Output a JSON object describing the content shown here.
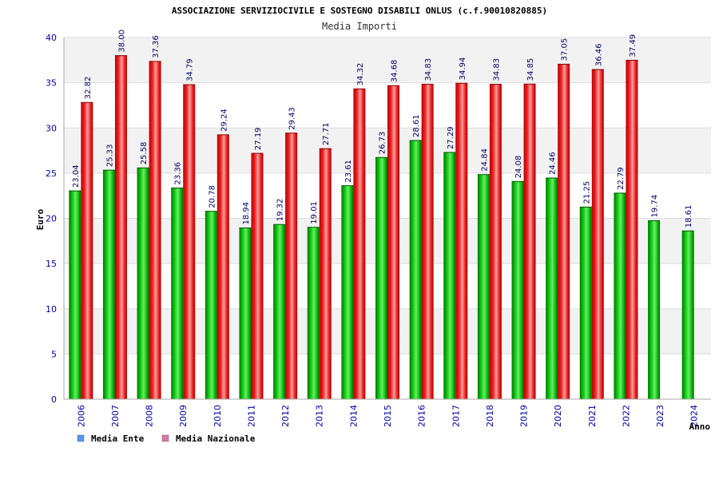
{
  "chart_data": {
    "type": "bar",
    "title": "ASSOCIAZIONE SERVIZIOCIVILE E SOSTEGNO DISABILI ONLUS (c.f.90010820885)",
    "subtitle": "Media Importi",
    "xlabel": "Anno",
    "ylabel": "Euro",
    "ylim": [
      0,
      40
    ],
    "yticks": [
      0,
      5,
      10,
      15,
      20,
      25,
      30,
      35,
      40
    ],
    "grid": true,
    "legend_position": "bottom-left",
    "categories": [
      "2006",
      "2007",
      "2008",
      "2009",
      "2010",
      "2011",
      "2012",
      "2013",
      "2014",
      "2015",
      "2016",
      "2017",
      "2018",
      "2019",
      "2020",
      "2021",
      "2022",
      "2023",
      "2024"
    ],
    "series": [
      {
        "name": "Media Ente",
        "legend_color": "#5599ee",
        "bar_color": "#00bb00",
        "values": [
          23.04,
          25.33,
          25.58,
          23.36,
          20.78,
          18.94,
          19.32,
          19.01,
          23.61,
          26.73,
          28.61,
          27.29,
          24.84,
          24.08,
          24.46,
          21.25,
          22.79,
          19.74,
          18.61
        ],
        "labels": [
          "23.04",
          "25.33",
          "25.58",
          "23.36",
          "20.78",
          "18.94",
          "19.32",
          "19.01",
          "23.61",
          "26.73",
          "28.61",
          "27.29",
          "24.84",
          "24.08",
          "24.46",
          "21.25",
          "22.79",
          "19.74",
          "18.61"
        ]
      },
      {
        "name": "Media Nazionale",
        "legend_color": "#dd77aa",
        "bar_color": "#ee2222",
        "values": [
          32.82,
          38.0,
          37.36,
          34.79,
          29.24,
          27.19,
          29.43,
          27.71,
          34.32,
          34.68,
          34.83,
          34.94,
          34.83,
          34.85,
          37.05,
          36.46,
          37.49,
          null,
          null
        ],
        "labels": [
          "32.82",
          "38.00",
          "37.36",
          "34.79",
          "29.24",
          "27.19",
          "29.43",
          "27.71",
          "34.32",
          "34.68",
          "34.83",
          "34.94",
          "34.83",
          "34.85",
          "37.05",
          "36.46",
          "37.49",
          null,
          null
        ]
      }
    ]
  }
}
